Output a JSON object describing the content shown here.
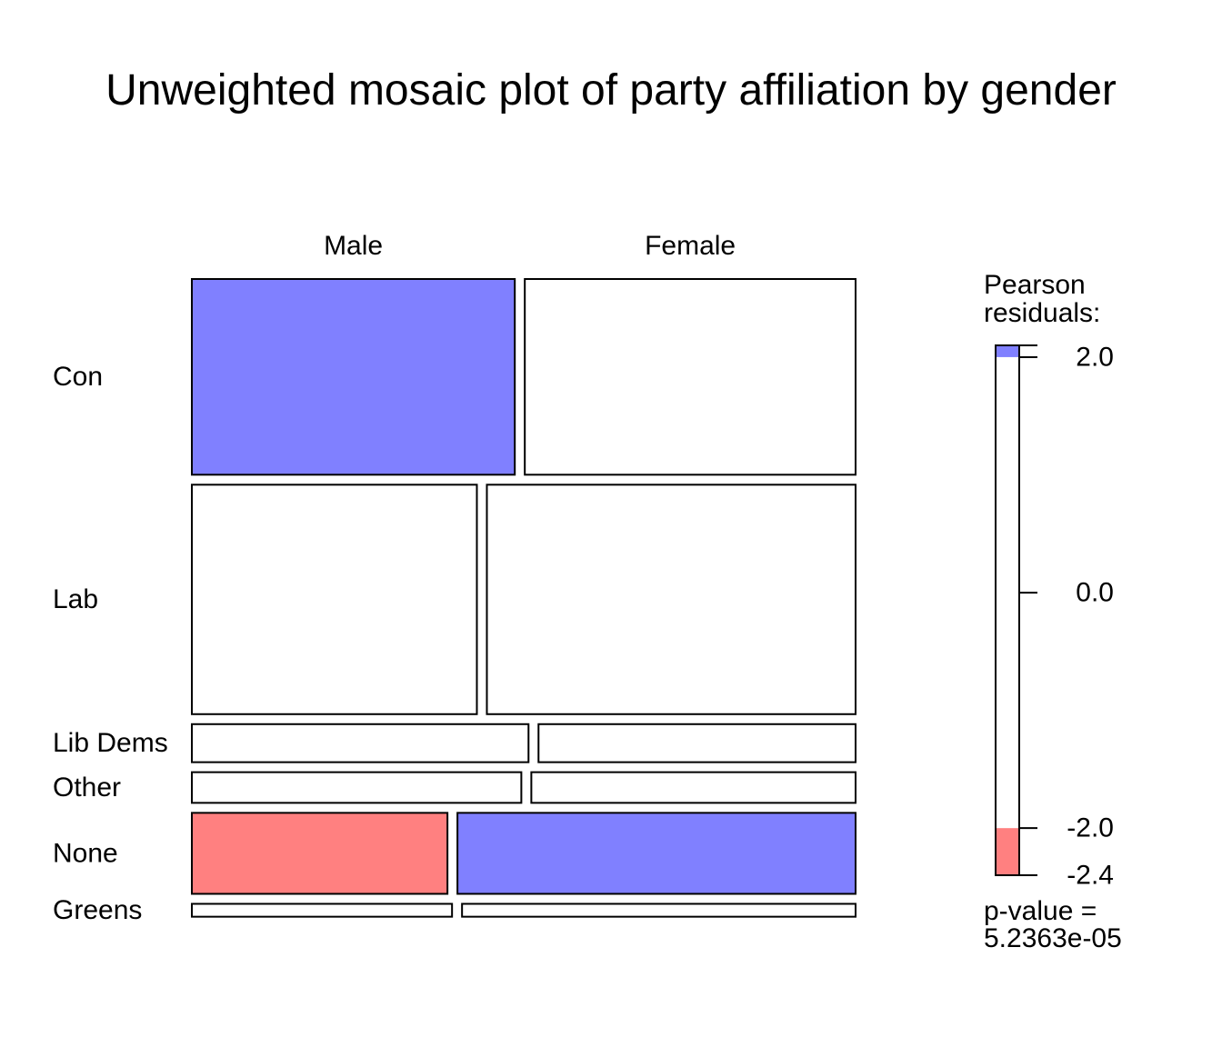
{
  "chart_data": {
    "type": "mosaic",
    "title": "Unweighted mosaic plot of party affiliation by gender",
    "column_variable_levels": [
      "Male",
      "Female"
    ],
    "row_variable_levels": [
      "Con",
      "Lab",
      "Lib Dems",
      "Other",
      "None",
      "Greens"
    ],
    "row_shares": [
      0.319,
      0.374,
      0.062,
      0.05,
      0.132,
      0.021
    ],
    "male_share_within_row": [
      0.494,
      0.436,
      0.515,
      0.504,
      0.391,
      0.398
    ],
    "residual_sign": [
      [
        "positive",
        "neutral"
      ],
      [
        "neutral",
        "neutral"
      ],
      [
        "neutral",
        "neutral"
      ],
      [
        "neutral",
        "neutral"
      ],
      [
        "negative",
        "positive"
      ],
      [
        "neutral",
        "neutral"
      ]
    ],
    "shading": [
      [
        "#8080ff",
        "#ffffff"
      ],
      [
        "#ffffff",
        "#ffffff"
      ],
      [
        "#ffffff",
        "#ffffff"
      ],
      [
        "#ffffff",
        "#ffffff"
      ],
      [
        "#ff8080",
        "#8080ff"
      ],
      [
        "#ffffff",
        "#ffffff"
      ]
    ],
    "legend": {
      "title_line1": "Pearson",
      "title_line2": "residuals:",
      "min": -2.4,
      "max": 2.1,
      "ticks": [
        {
          "value": 2.1,
          "label": ""
        },
        {
          "value": 2.0,
          "label": "2.0"
        },
        {
          "value": 0.0,
          "label": "0.0"
        },
        {
          "value": -2.0,
          "label": "-2.0"
        },
        {
          "value": -2.4,
          "label": "-2.4"
        }
      ],
      "bands": [
        {
          "from": 2.0,
          "to": 2.1,
          "color": "#8080ff"
        },
        {
          "from": -2.0,
          "to": 2.0,
          "color": "#ffffff"
        },
        {
          "from": -2.4,
          "to": -2.0,
          "color": "#ff8080"
        }
      ],
      "pvalue_line1": "p-value =",
      "pvalue_line2": "5.2363e-05"
    }
  }
}
